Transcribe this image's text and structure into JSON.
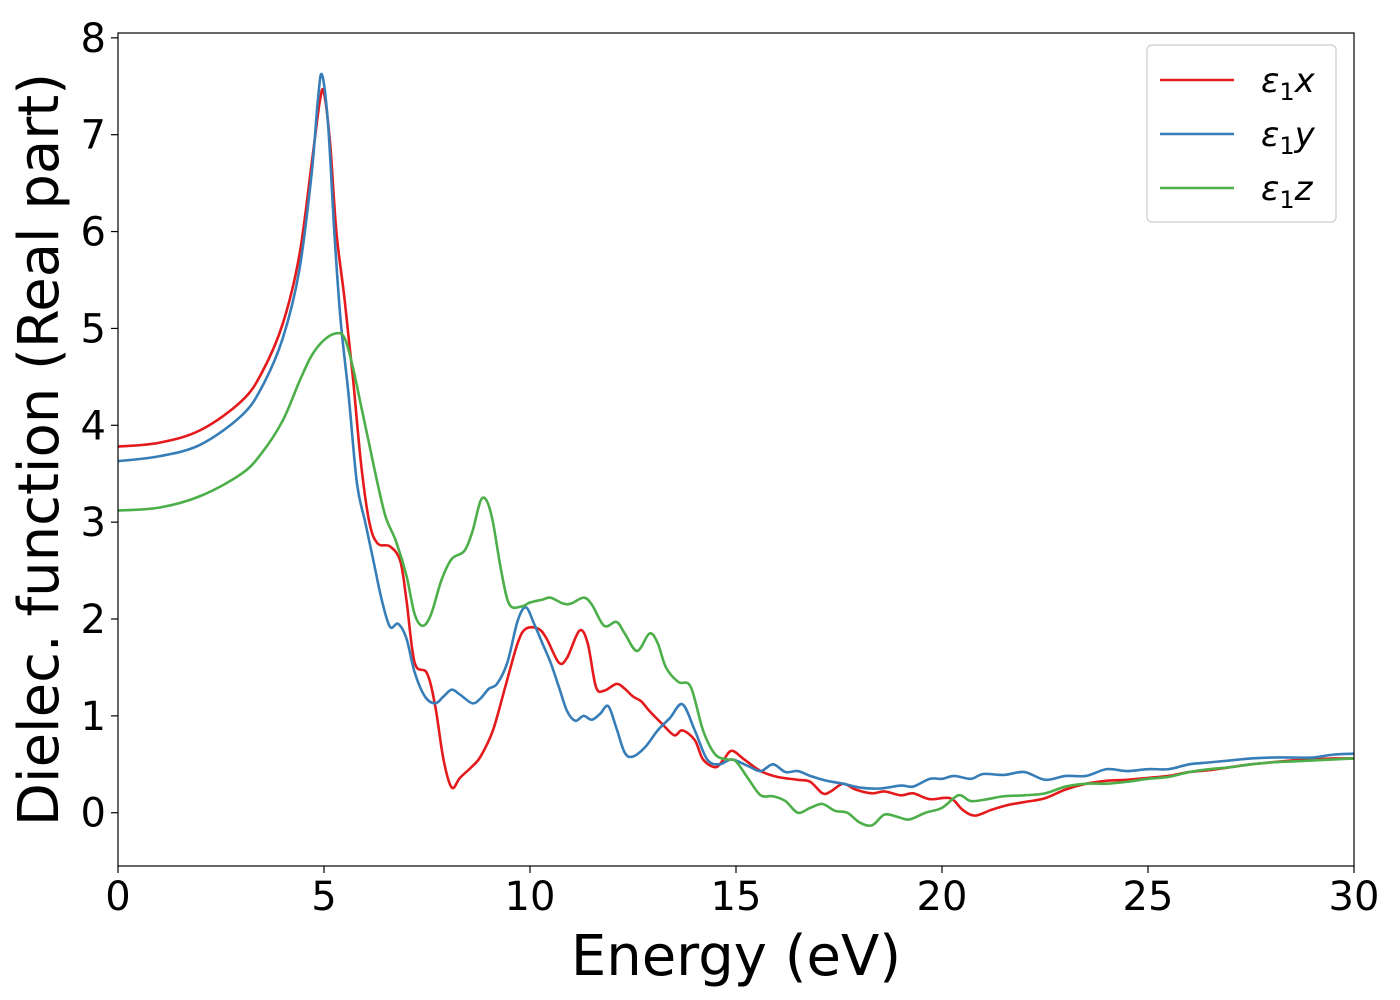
{
  "chart_data": {
    "type": "line",
    "xlabel": "Energy (eV)",
    "ylabel": "Dielec. function (Real part)",
    "xlim": [
      0,
      30
    ],
    "ylim": [
      -0.55,
      8.05
    ],
    "xticks": [
      0,
      5,
      10,
      15,
      20,
      25,
      30
    ],
    "yticks": [
      0,
      1,
      2,
      3,
      4,
      5,
      6,
      7,
      8
    ],
    "grid": false,
    "legend_position": "top-right",
    "series": [
      {
        "name": "ε₁x",
        "legend_base": "ε",
        "legend_sub": "1",
        "legend_var": "x",
        "color": "#e41a1c",
        "points": [
          [
            0,
            3.78
          ],
          [
            1,
            3.82
          ],
          [
            2,
            3.95
          ],
          [
            3,
            4.25
          ],
          [
            3.5,
            4.55
          ],
          [
            4,
            5.05
          ],
          [
            4.4,
            5.75
          ],
          [
            4.7,
            6.7
          ],
          [
            4.9,
            7.35
          ],
          [
            5.0,
            7.43
          ],
          [
            5.15,
            6.9
          ],
          [
            5.3,
            6.0
          ],
          [
            5.5,
            5.3
          ],
          [
            5.7,
            4.5
          ],
          [
            5.9,
            3.6
          ],
          [
            6.1,
            3.0
          ],
          [
            6.3,
            2.78
          ],
          [
            6.6,
            2.75
          ],
          [
            6.85,
            2.6
          ],
          [
            7.0,
            2.2
          ],
          [
            7.2,
            1.55
          ],
          [
            7.5,
            1.44
          ],
          [
            7.7,
            1.1
          ],
          [
            7.9,
            0.55
          ],
          [
            8.1,
            0.26
          ],
          [
            8.3,
            0.36
          ],
          [
            8.6,
            0.48
          ],
          [
            8.8,
            0.58
          ],
          [
            9.1,
            0.85
          ],
          [
            9.4,
            1.3
          ],
          [
            9.7,
            1.75
          ],
          [
            9.9,
            1.9
          ],
          [
            10.2,
            1.9
          ],
          [
            10.4,
            1.8
          ],
          [
            10.7,
            1.55
          ],
          [
            10.9,
            1.6
          ],
          [
            11.2,
            1.88
          ],
          [
            11.4,
            1.75
          ],
          [
            11.6,
            1.3
          ],
          [
            11.8,
            1.26
          ],
          [
            12.1,
            1.33
          ],
          [
            12.3,
            1.28
          ],
          [
            12.5,
            1.2
          ],
          [
            12.7,
            1.15
          ],
          [
            12.9,
            1.05
          ],
          [
            13.2,
            0.92
          ],
          [
            13.5,
            0.8
          ],
          [
            13.7,
            0.85
          ],
          [
            14.0,
            0.75
          ],
          [
            14.2,
            0.55
          ],
          [
            14.5,
            0.47
          ],
          [
            14.7,
            0.55
          ],
          [
            14.9,
            0.64
          ],
          [
            15.2,
            0.55
          ],
          [
            15.6,
            0.43
          ],
          [
            16.0,
            0.37
          ],
          [
            16.5,
            0.34
          ],
          [
            16.8,
            0.32
          ],
          [
            17.1,
            0.2
          ],
          [
            17.3,
            0.22
          ],
          [
            17.6,
            0.3
          ],
          [
            17.9,
            0.24
          ],
          [
            18.3,
            0.2
          ],
          [
            18.6,
            0.22
          ],
          [
            19.0,
            0.18
          ],
          [
            19.3,
            0.2
          ],
          [
            19.7,
            0.14
          ],
          [
            20.2,
            0.15
          ],
          [
            20.5,
            0.03
          ],
          [
            20.8,
            -0.03
          ],
          [
            21.2,
            0.03
          ],
          [
            21.6,
            0.08
          ],
          [
            22.0,
            0.11
          ],
          [
            22.5,
            0.15
          ],
          [
            23.0,
            0.24
          ],
          [
            23.5,
            0.3
          ],
          [
            24.0,
            0.33
          ],
          [
            24.5,
            0.34
          ],
          [
            25.0,
            0.36
          ],
          [
            25.5,
            0.38
          ],
          [
            26.0,
            0.42
          ],
          [
            26.5,
            0.44
          ],
          [
            27.0,
            0.47
          ],
          [
            27.5,
            0.5
          ],
          [
            28.0,
            0.52
          ],
          [
            28.5,
            0.54
          ],
          [
            29.0,
            0.55
          ],
          [
            29.5,
            0.56
          ],
          [
            30.0,
            0.56
          ]
        ]
      },
      {
        "name": "ε₁y",
        "legend_base": "ε",
        "legend_sub": "1",
        "legend_var": "y",
        "color": "#377eb8",
        "points": [
          [
            0,
            3.63
          ],
          [
            1,
            3.68
          ],
          [
            2,
            3.8
          ],
          [
            3,
            4.1
          ],
          [
            3.5,
            4.4
          ],
          [
            4,
            4.9
          ],
          [
            4.4,
            5.6
          ],
          [
            4.7,
            6.6
          ],
          [
            4.85,
            7.35
          ],
          [
            4.95,
            7.62
          ],
          [
            5.1,
            7.1
          ],
          [
            5.25,
            6.0
          ],
          [
            5.4,
            5.1
          ],
          [
            5.6,
            4.3
          ],
          [
            5.8,
            3.4
          ],
          [
            6.0,
            3.0
          ],
          [
            6.2,
            2.6
          ],
          [
            6.4,
            2.2
          ],
          [
            6.6,
            1.92
          ],
          [
            6.8,
            1.95
          ],
          [
            7.0,
            1.8
          ],
          [
            7.2,
            1.45
          ],
          [
            7.45,
            1.2
          ],
          [
            7.7,
            1.13
          ],
          [
            7.9,
            1.2
          ],
          [
            8.1,
            1.27
          ],
          [
            8.3,
            1.22
          ],
          [
            8.6,
            1.13
          ],
          [
            8.8,
            1.18
          ],
          [
            9.0,
            1.28
          ],
          [
            9.2,
            1.33
          ],
          [
            9.45,
            1.55
          ],
          [
            9.7,
            1.98
          ],
          [
            9.9,
            2.12
          ],
          [
            10.1,
            1.95
          ],
          [
            10.3,
            1.75
          ],
          [
            10.5,
            1.55
          ],
          [
            10.7,
            1.3
          ],
          [
            10.9,
            1.05
          ],
          [
            11.1,
            0.95
          ],
          [
            11.3,
            1.0
          ],
          [
            11.5,
            0.96
          ],
          [
            11.7,
            1.02
          ],
          [
            11.9,
            1.1
          ],
          [
            12.1,
            0.87
          ],
          [
            12.3,
            0.62
          ],
          [
            12.5,
            0.58
          ],
          [
            12.8,
            0.68
          ],
          [
            13.1,
            0.85
          ],
          [
            13.4,
            0.98
          ],
          [
            13.7,
            1.12
          ],
          [
            14.0,
            0.85
          ],
          [
            14.3,
            0.55
          ],
          [
            14.6,
            0.5
          ],
          [
            14.9,
            0.55
          ],
          [
            15.3,
            0.48
          ],
          [
            15.6,
            0.43
          ],
          [
            15.9,
            0.5
          ],
          [
            16.2,
            0.42
          ],
          [
            16.5,
            0.43
          ],
          [
            16.8,
            0.38
          ],
          [
            17.2,
            0.33
          ],
          [
            17.6,
            0.3
          ],
          [
            18.0,
            0.26
          ],
          [
            18.5,
            0.25
          ],
          [
            19.0,
            0.28
          ],
          [
            19.3,
            0.27
          ],
          [
            19.7,
            0.35
          ],
          [
            20.0,
            0.35
          ],
          [
            20.3,
            0.38
          ],
          [
            20.7,
            0.35
          ],
          [
            21.0,
            0.4
          ],
          [
            21.5,
            0.39
          ],
          [
            22.0,
            0.42
          ],
          [
            22.5,
            0.34
          ],
          [
            23.0,
            0.38
          ],
          [
            23.5,
            0.38
          ],
          [
            24.0,
            0.45
          ],
          [
            24.5,
            0.43
          ],
          [
            25.0,
            0.45
          ],
          [
            25.5,
            0.45
          ],
          [
            26.0,
            0.5
          ],
          [
            26.5,
            0.52
          ],
          [
            27.0,
            0.54
          ],
          [
            27.5,
            0.56
          ],
          [
            28.0,
            0.57
          ],
          [
            28.5,
            0.57
          ],
          [
            29.0,
            0.57
          ],
          [
            29.5,
            0.6
          ],
          [
            30.0,
            0.61
          ]
        ]
      },
      {
        "name": "ε₁z",
        "legend_base": "ε",
        "legend_sub": "1",
        "legend_var": "z",
        "color": "#4daf4a",
        "points": [
          [
            0,
            3.12
          ],
          [
            1,
            3.15
          ],
          [
            2,
            3.27
          ],
          [
            3,
            3.5
          ],
          [
            3.5,
            3.72
          ],
          [
            4,
            4.05
          ],
          [
            4.4,
            4.45
          ],
          [
            4.7,
            4.72
          ],
          [
            5.0,
            4.88
          ],
          [
            5.3,
            4.95
          ],
          [
            5.5,
            4.9
          ],
          [
            5.7,
            4.6
          ],
          [
            5.9,
            4.2
          ],
          [
            6.1,
            3.8
          ],
          [
            6.3,
            3.4
          ],
          [
            6.5,
            3.05
          ],
          [
            6.75,
            2.8
          ],
          [
            7.0,
            2.45
          ],
          [
            7.2,
            2.05
          ],
          [
            7.4,
            1.93
          ],
          [
            7.6,
            2.05
          ],
          [
            7.85,
            2.4
          ],
          [
            8.1,
            2.62
          ],
          [
            8.4,
            2.7
          ],
          [
            8.6,
            2.9
          ],
          [
            8.8,
            3.22
          ],
          [
            8.95,
            3.22
          ],
          [
            9.1,
            3.0
          ],
          [
            9.3,
            2.5
          ],
          [
            9.5,
            2.15
          ],
          [
            9.8,
            2.13
          ],
          [
            10.0,
            2.17
          ],
          [
            10.3,
            2.2
          ],
          [
            10.5,
            2.22
          ],
          [
            10.8,
            2.16
          ],
          [
            11.0,
            2.16
          ],
          [
            11.3,
            2.22
          ],
          [
            11.5,
            2.15
          ],
          [
            11.8,
            1.93
          ],
          [
            12.1,
            1.97
          ],
          [
            12.3,
            1.85
          ],
          [
            12.6,
            1.67
          ],
          [
            12.9,
            1.85
          ],
          [
            13.1,
            1.75
          ],
          [
            13.3,
            1.5
          ],
          [
            13.6,
            1.35
          ],
          [
            13.9,
            1.3
          ],
          [
            14.2,
            0.85
          ],
          [
            14.5,
            0.6
          ],
          [
            14.8,
            0.55
          ],
          [
            15.0,
            0.53
          ],
          [
            15.3,
            0.35
          ],
          [
            15.6,
            0.18
          ],
          [
            15.9,
            0.17
          ],
          [
            16.2,
            0.12
          ],
          [
            16.5,
            0.0
          ],
          [
            16.8,
            0.05
          ],
          [
            17.1,
            0.09
          ],
          [
            17.4,
            0.02
          ],
          [
            17.7,
            0.0
          ],
          [
            18.0,
            -0.1
          ],
          [
            18.3,
            -0.13
          ],
          [
            18.6,
            -0.02
          ],
          [
            18.9,
            -0.04
          ],
          [
            19.2,
            -0.07
          ],
          [
            19.6,
            0.0
          ],
          [
            20.0,
            0.05
          ],
          [
            20.4,
            0.18
          ],
          [
            20.7,
            0.12
          ],
          [
            21.1,
            0.14
          ],
          [
            21.5,
            0.17
          ],
          [
            22.0,
            0.18
          ],
          [
            22.5,
            0.2
          ],
          [
            23.0,
            0.27
          ],
          [
            23.5,
            0.3
          ],
          [
            24.0,
            0.3
          ],
          [
            24.5,
            0.32
          ],
          [
            25.0,
            0.35
          ],
          [
            25.5,
            0.37
          ],
          [
            26.0,
            0.42
          ],
          [
            26.5,
            0.45
          ],
          [
            27.0,
            0.47
          ],
          [
            27.5,
            0.5
          ],
          [
            28.0,
            0.52
          ],
          [
            28.5,
            0.53
          ],
          [
            29.0,
            0.54
          ],
          [
            29.5,
            0.55
          ],
          [
            30.0,
            0.56
          ]
        ]
      }
    ]
  }
}
